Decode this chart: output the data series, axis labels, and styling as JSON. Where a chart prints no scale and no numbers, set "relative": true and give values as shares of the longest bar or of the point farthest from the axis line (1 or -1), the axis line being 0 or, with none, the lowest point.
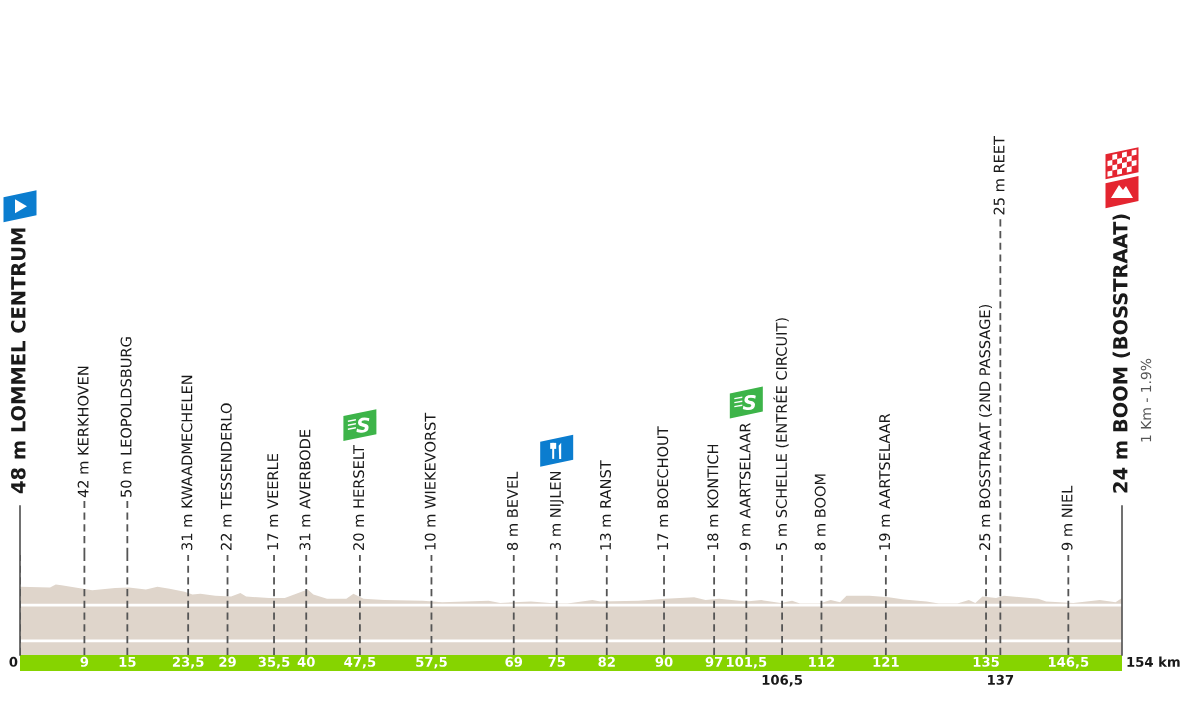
{
  "chart_data": {
    "type": "area",
    "relative": true,
    "color": "#dfd5cb",
    "x": [
      0,
      4.2,
      5.0,
      5.8,
      8.8,
      10.1,
      13.3,
      15.2,
      17.6,
      19.2,
      20.9,
      23.0,
      24.1,
      25.2,
      27.3,
      29.5,
      30.8,
      31.6,
      34.8,
      37.0,
      38.6,
      40.2,
      41.0,
      42.9,
      45.6,
      46.6,
      48.0,
      50.9,
      56.3,
      59.0,
      65.5,
      67.1,
      71.4,
      74.9,
      76.5,
      80.0,
      81.1,
      86.4,
      90.2,
      94.2,
      95.8,
      97.7,
      101.5,
      103.6,
      106.3,
      107.9,
      109.0,
      111.7,
      113.3,
      114.6,
      115.5,
      118.7,
      121.4,
      123.5,
      126.7,
      128.4,
      131.0,
      132.6,
      133.5,
      134.5,
      136.4,
      137.5,
      142.3,
      143.4,
      147.2,
      150.9,
      153.1,
      154
    ],
    "values": [
      0.97,
      0.96,
      1,
      0.99,
      0.94,
      0.92,
      0.95,
      0.96,
      0.93,
      0.97,
      0.94,
      0.9,
      0.86,
      0.87,
      0.84,
      0.83,
      0.88,
      0.83,
      0.81,
      0.81,
      0.87,
      0.93,
      0.86,
      0.8,
      0.8,
      0.87,
      0.8,
      0.78,
      0.77,
      0.75,
      0.77,
      0.74,
      0.76,
      0.73,
      0.73,
      0.78,
      0.76,
      0.77,
      0.8,
      0.82,
      0.78,
      0.8,
      0.76,
      0.78,
      0.74,
      0.77,
      0.73,
      0.73,
      0.78,
      0.75,
      0.84,
      0.84,
      0.82,
      0.79,
      0.76,
      0.73,
      0.73,
      0.78,
      0.74,
      0.83,
      0.81,
      0.84,
      0.8,
      0.76,
      0.74,
      0.78,
      0.75,
      0.81
    ],
    "xlim": [
      0,
      154
    ],
    "xticks": [
      0,
      9,
      15,
      {
        "value": 23.5,
        "label": "23,5"
      },
      29,
      {
        "value": 35.5,
        "label": "35,5"
      },
      40,
      {
        "value": 47.5,
        "label": "47,5"
      },
      {
        "value": 57.5,
        "label": "57,5"
      },
      69,
      75,
      82,
      90,
      97,
      {
        "value": 101.5,
        "label": "101,5"
      },
      112,
      121,
      135,
      {
        "value": 146.5,
        "label": "146,5"
      }
    ],
    "x2lim": [
      0,
      154
    ],
    "x2ticks": [
      {
        "value": 106.5,
        "label": "106,5"
      },
      137
    ],
    "grid": "x",
    "ref_lines": [
      {
        "axis": "y",
        "value": 0.71,
        "color": "#ffffff"
      },
      {
        "axis": "y",
        "value": 0.2,
        "color": "#ffffff"
      }
    ],
    "annotations": [
      "48 m LOMMEL CENTRUM",
      "42 m KERKHOVEN",
      "50 m LEOPOLDSBURG",
      "31 m KWAADMECHELEN",
      "22 m TESSENDERLO",
      "17 m VEERLE",
      "31 m AVERBODE",
      "20 m HERSELT",
      "10 m WIEKEVORST",
      "8 m BEVEL",
      "3 m NIJLEN",
      "13 m RANST",
      "17 m BOECHOUT",
      "18 m KONTICH",
      "9 m AARTSELAAR",
      "5 m SCHELLE (ENTRÉE CIRCUIT)",
      "8 m BOOM",
      "19 m AARTSELAAR",
      "25 m BOSSTRAAT (2ND PASSAGE)",
      "25 m REET",
      "9 m NIEL",
      "24 m BOOM (BOSSTRAAT)",
      "1 Km - 1.9%",
      "154 km"
    ]
  }
}
